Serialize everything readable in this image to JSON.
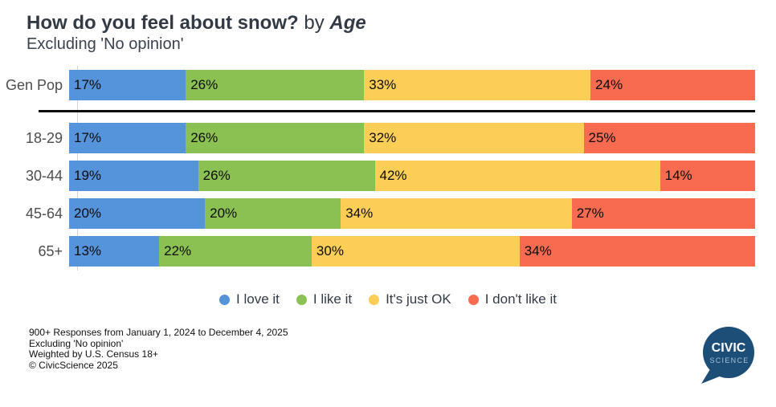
{
  "title": {
    "main": "How do you feel about snow?",
    "connector": " by ",
    "group": "Age",
    "subtitle": "Excluding 'No opinion'"
  },
  "colors": {
    "love": "#5593DB",
    "like": "#8BC152",
    "just_ok": "#FDCE55",
    "dislike": "#F96B51",
    "divider": "#0A0A0A",
    "title_text": "#323A45",
    "row_label_text": "#4D4D4D",
    "logo_blue": "#1D4E78"
  },
  "chart_data": {
    "type": "bar",
    "orientation": "horizontal",
    "stacked": true,
    "normalized_to_100": true,
    "value_format": "percent",
    "value_labels": "inside-start",
    "xlim": [
      0,
      100
    ],
    "grid": "zero-baseline-only",
    "legend_position": "bottom-center",
    "categories": [
      "Gen Pop",
      "18-29",
      "30-44",
      "45-64",
      "65+"
    ],
    "separator_after_category": "Gen Pop",
    "series": [
      {
        "name": "I love it",
        "color": "#5593DB",
        "values": [
          17,
          17,
          19,
          20,
          13
        ]
      },
      {
        "name": "I like it",
        "color": "#8BC152",
        "values": [
          26,
          26,
          26,
          20,
          22
        ]
      },
      {
        "name": "It's just OK",
        "color": "#FDCE55",
        "values": [
          33,
          32,
          42,
          34,
          30
        ]
      },
      {
        "name": "I don't like it",
        "color": "#F96B51",
        "values": [
          24,
          25,
          14,
          27,
          34
        ]
      }
    ]
  },
  "legend": [
    {
      "label": "I love it",
      "color": "#5593DB"
    },
    {
      "label": "I like it",
      "color": "#8BC152"
    },
    {
      "label": "It's just OK",
      "color": "#FDCE55"
    },
    {
      "label": "I don't like it",
      "color": "#F96B51"
    }
  ],
  "footer": {
    "lines": [
      "900+ Responses from January 1, 2024 to December 4, 2025",
      "Excluding 'No opinion'",
      "Weighted by U.S. Census 18+",
      "© CivicScience 2025"
    ]
  },
  "logo": {
    "line1": "CIVIC",
    "line2": "SCIENCE"
  }
}
